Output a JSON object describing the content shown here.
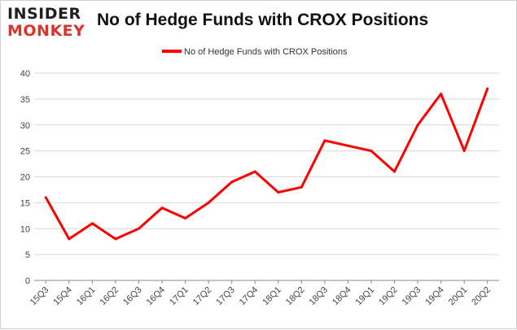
{
  "brand": {
    "line1": "INSIDER",
    "line2": "MONKEY"
  },
  "colors": {
    "series": "#ff0000",
    "grid": "#d9d9d9",
    "axis": "#888888",
    "brand_red": "#d9352b"
  },
  "chart_data": {
    "type": "line",
    "title": "No of Hedge Funds with CROX Positions",
    "xlabel": "",
    "ylabel": "",
    "ylim": [
      0,
      40
    ],
    "yticks": [
      0,
      5,
      10,
      15,
      20,
      25,
      30,
      35,
      40
    ],
    "grid": true,
    "legend_position": "top",
    "categories": [
      "15Q3",
      "15Q4",
      "16Q1",
      "16Q2",
      "16Q3",
      "16Q4",
      "17Q1",
      "17Q2",
      "17Q3",
      "17Q4",
      "18Q1",
      "18Q2",
      "18Q3",
      "18Q4",
      "19Q1",
      "19Q2",
      "19Q3",
      "19Q4",
      "20Q1",
      "20Q2"
    ],
    "series": [
      {
        "name": "No of Hedge Funds with CROX Positions",
        "values": [
          16,
          8,
          11,
          8,
          10,
          14,
          12,
          15,
          19,
          21,
          17,
          18,
          27,
          26,
          25,
          21,
          30,
          36,
          25,
          37
        ]
      }
    ]
  }
}
